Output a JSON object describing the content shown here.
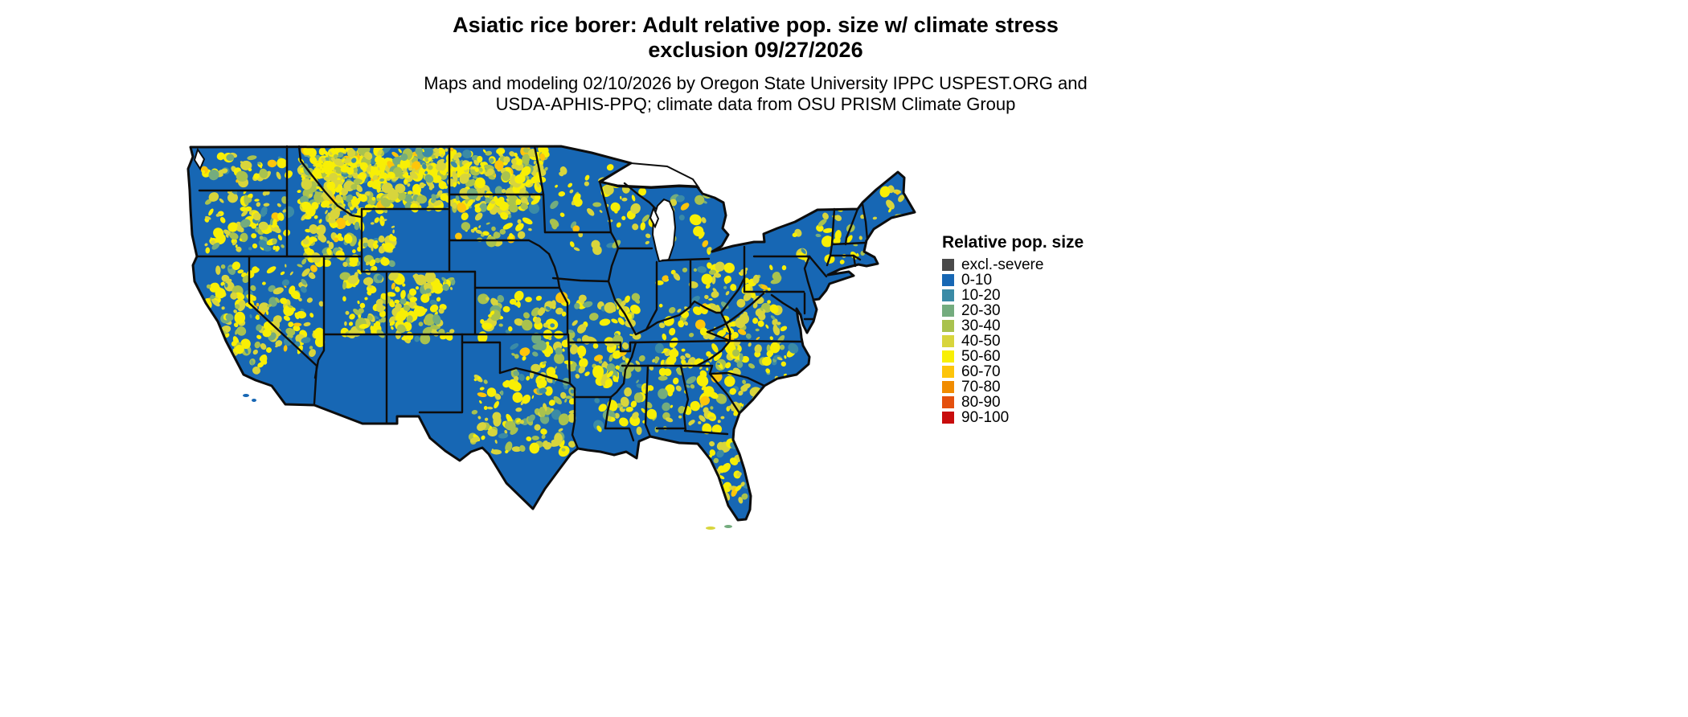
{
  "header": {
    "title_line1": "Asiatic rice borer: Adult relative pop. size w/ climate stress",
    "title_line2": "exclusion 09/27/2026",
    "credit_line1": "Maps and modeling 02/10/2026 by Oregon State University IPPC USPEST.ORG and",
    "credit_line2": "USDA-APHIS-PPQ; climate data from OSU PRISM Climate Group"
  },
  "legend": {
    "title": "Relative pop. size",
    "items": [
      {
        "label": "excl.-severe",
        "color": "#4a4a4a"
      },
      {
        "label": "0-10",
        "color": "#1767b4"
      },
      {
        "label": "10-20",
        "color": "#3b8ba6"
      },
      {
        "label": "20-30",
        "color": "#74ac7e"
      },
      {
        "label": "30-40",
        "color": "#a9c24e"
      },
      {
        "label": "40-50",
        "color": "#d8d53c"
      },
      {
        "label": "50-60",
        "color": "#f8ef05"
      },
      {
        "label": "60-70",
        "color": "#fdc50b"
      },
      {
        "label": "70-80",
        "color": "#f18c00"
      },
      {
        "label": "80-90",
        "color": "#e4500e"
      },
      {
        "label": "90-100",
        "color": "#c80c0c"
      }
    ]
  },
  "map": {
    "region": "Conterminous United States",
    "base_color": "#1767b4",
    "border_color": "#0d0d0d",
    "background": "#ffffff"
  }
}
